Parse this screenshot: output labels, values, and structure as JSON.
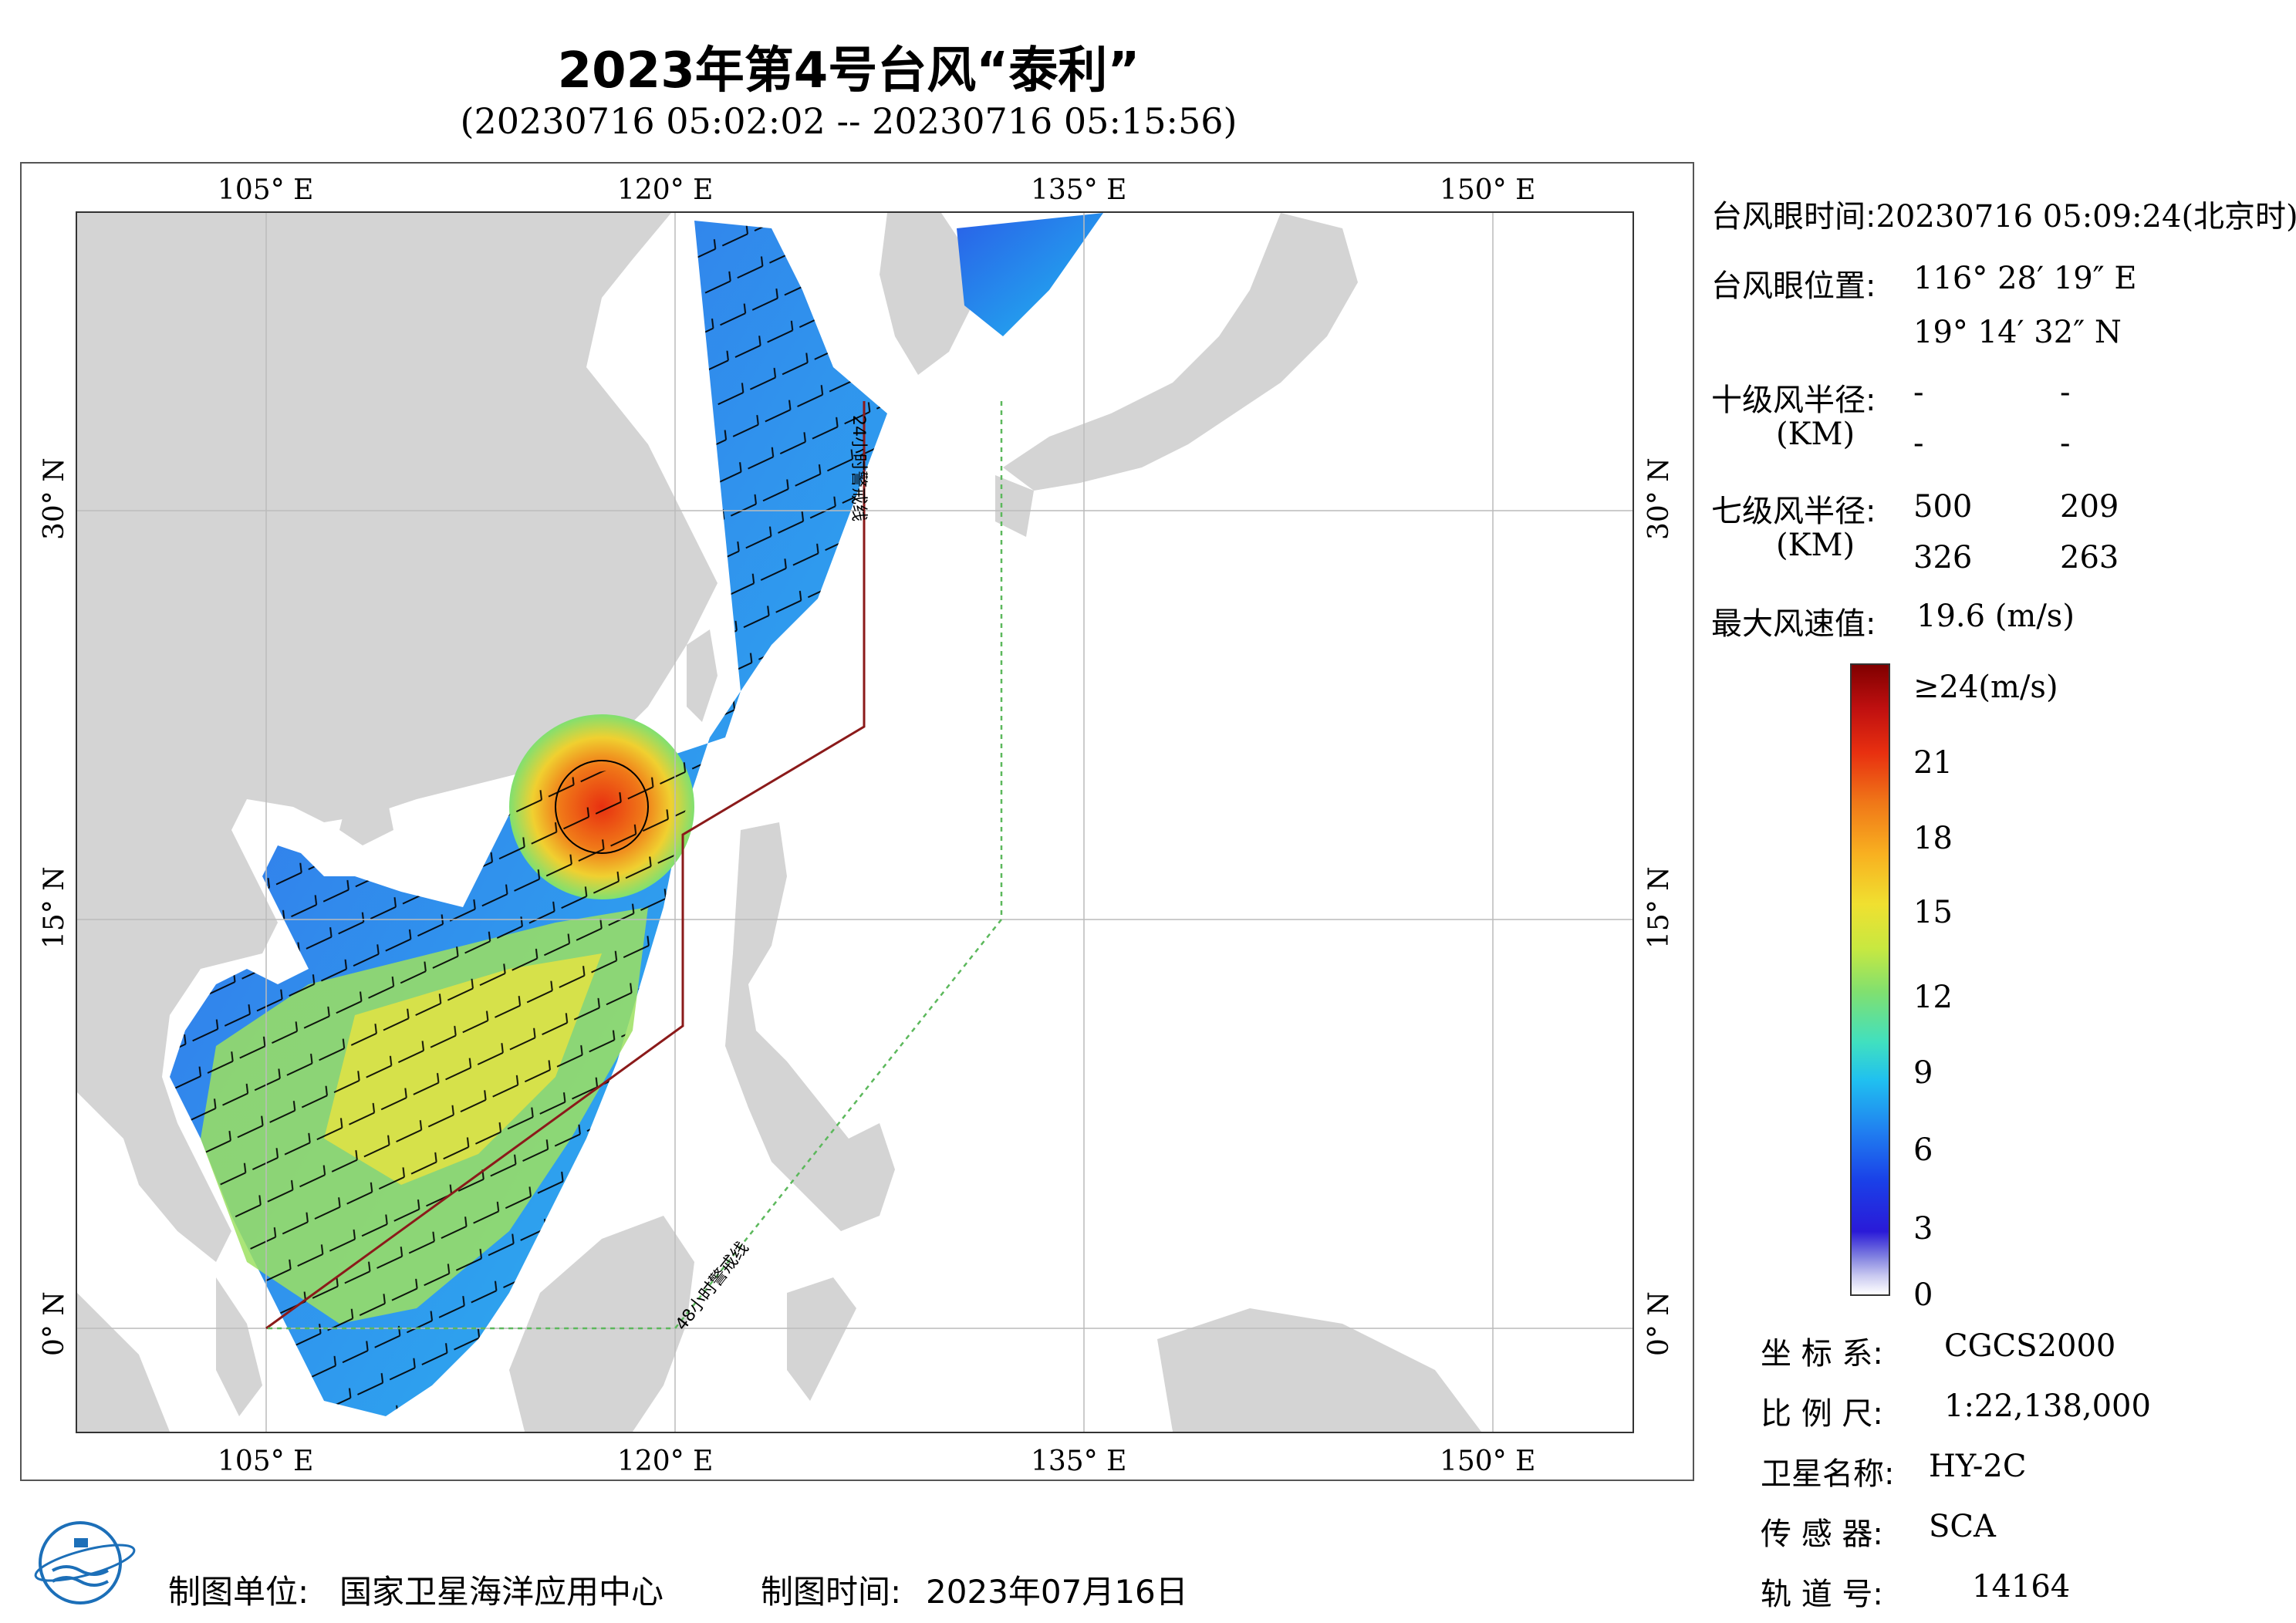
{
  "header": {
    "title": "2023年第4号台风“泰利”",
    "subtitle": "(20230716 05:02:02 -- 20230716 05:15:56)"
  },
  "map": {
    "lon_labels": [
      "105° E",
      "120° E",
      "135° E",
      "150° E"
    ],
    "lat_labels": [
      "30° N",
      "15° N",
      "0° N"
    ],
    "warning_24h": "24小时警戒线",
    "warning_48h": "48小时警戒线"
  },
  "info": {
    "eye_time_label": "台风眼时间:",
    "eye_time": "20230716 05:09:24(北京时)",
    "eye_pos_label": "台风眼位置:",
    "eye_lon": "116° 28′ 19″ E",
    "eye_lat": "19° 14′ 32″ N",
    "r10_label": "十级风半径:",
    "km_label": "(KM)",
    "r10_values": [
      "-",
      "-",
      "-",
      "-"
    ],
    "r7_label": "七级风半径:",
    "r7_values": [
      "500",
      "209",
      "326",
      "263"
    ],
    "max_wind_label": "最大风速值:",
    "max_wind": "19.6  (m/s)"
  },
  "colorbar": {
    "labels": [
      "≥24(m/s)",
      "21",
      "18",
      "15",
      "12",
      "9",
      "6",
      "3",
      "0"
    ]
  },
  "meta": {
    "crs_label": "坐 标 系:",
    "crs": "CGCS2000",
    "scale_label": "比 例 尺:",
    "scale": "1:22,138,000",
    "satellite_label": "卫星名称:",
    "satellite": "HY-2C",
    "sensor_label": "传 感 器:",
    "sensor": "SCA",
    "orbit_label": "轨 道 号:",
    "orbit": "14164"
  },
  "footer": {
    "org_label": "制图单位:",
    "org": "国家卫星海洋应用中心",
    "date_label": "制图时间:",
    "date": "2023年07月16日"
  },
  "colors": {
    "land": "#d4d4d4",
    "warning_24h": "#8b1a1a",
    "warning_48h": "#5cb85c"
  }
}
